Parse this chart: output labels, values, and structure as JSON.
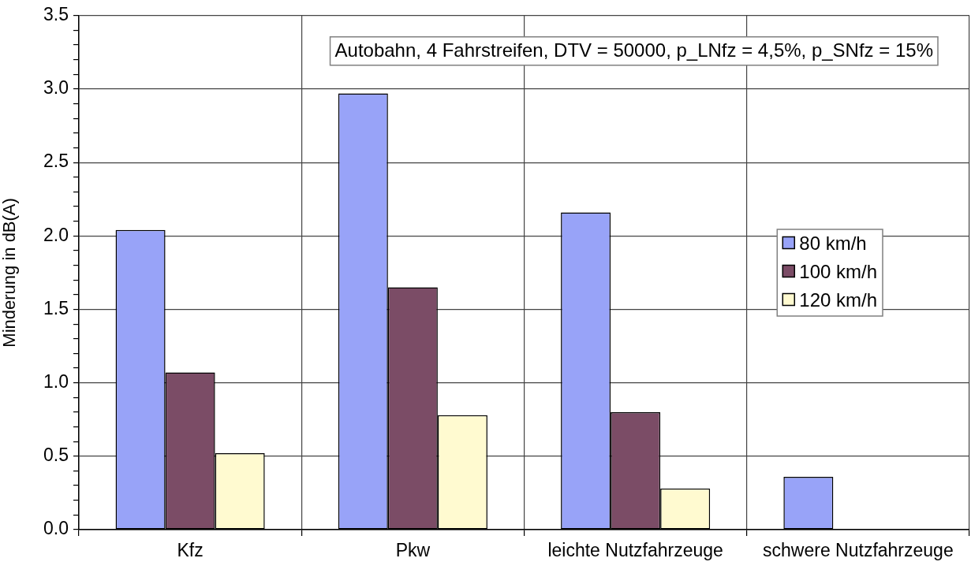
{
  "chart_data": {
    "type": "bar",
    "ylabel": "Minderung in dB(A)",
    "annotations": [
      "Autobahn, 4 Fahrstreifen, DTV = 50000, p_LNfz = 4,5%, p_SNfz = 15%"
    ],
    "categories": [
      "Kfz",
      "Pkw",
      "leichte Nutzfahrzeuge",
      "schwere Nutzfahrzeuge"
    ],
    "series": [
      {
        "name": "80 km/h",
        "color": "#98a3f8",
        "values": [
          2.04,
          2.97,
          2.16,
          0.36
        ]
      },
      {
        "name": "100 km/h",
        "color": "#7b4c66",
        "values": [
          1.07,
          1.65,
          0.8,
          null
        ]
      },
      {
        "name": "120 km/h",
        "color": "#fffad0",
        "values": [
          0.52,
          0.78,
          0.28,
          null
        ]
      }
    ],
    "ylim": [
      0,
      3.5
    ],
    "yticks": [
      {
        "value": 0,
        "label": "0.0"
      },
      {
        "value": 0.1,
        "label": null
      },
      {
        "value": 0.2,
        "label": null
      },
      {
        "value": 0.3,
        "label": null
      },
      {
        "value": 0.4,
        "label": null
      },
      0.5,
      {
        "value": 0.6,
        "label": null
      },
      {
        "value": 0.7,
        "label": null
      },
      {
        "value": 0.8,
        "label": null
      },
      {
        "value": 0.9,
        "label": null
      },
      {
        "value": 1,
        "label": "1.0"
      },
      {
        "value": 1.1,
        "label": null
      },
      {
        "value": 1.2,
        "label": null
      },
      {
        "value": 1.3,
        "label": null
      },
      {
        "value": 1.4,
        "label": null
      },
      1.5,
      {
        "value": 1.6,
        "label": null
      },
      {
        "value": 1.7,
        "label": null
      },
      {
        "value": 1.8,
        "label": null
      },
      {
        "value": 1.9,
        "label": null
      },
      {
        "value": 2,
        "label": "2.0"
      },
      {
        "value": 2.1,
        "label": null
      },
      {
        "value": 2.2,
        "label": null
      },
      {
        "value": 2.3,
        "label": null
      },
      {
        "value": 2.4,
        "label": null
      },
      2.5,
      {
        "value": 2.6,
        "label": null
      },
      {
        "value": 2.7,
        "label": null
      },
      {
        "value": 2.8,
        "label": null
      },
      {
        "value": 2.9,
        "label": null
      },
      {
        "value": 3,
        "label": "3.0"
      },
      {
        "value": 3.1,
        "label": null
      },
      {
        "value": 3.2,
        "label": null
      },
      {
        "value": 3.3,
        "label": null
      },
      {
        "value": 3.4,
        "label": null
      },
      3.5
    ],
    "grid": true,
    "legend": "right"
  }
}
